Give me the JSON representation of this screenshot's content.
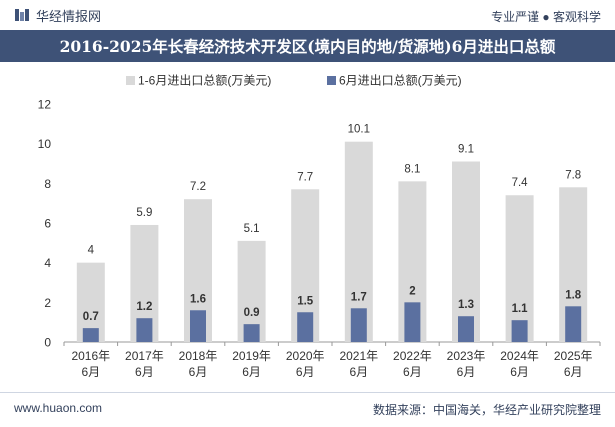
{
  "header": {
    "logo_text": "华经情报网",
    "tagline": "专业严谨 ● 客观科学"
  },
  "footer": {
    "website": "www.huaon.com",
    "source": "数据来源：中国海关，华经产业研究院整理"
  },
  "colors": {
    "series1": "#d9d9d9",
    "series2": "#5b70a0",
    "title_bg": "#3e5277",
    "accent": "#33415c"
  },
  "chart_data": {
    "type": "bar",
    "title": "2016-2025年长春经济技术开发区(境内目的地/货源地)6月进出口总额",
    "categories": [
      "2016年\n6月",
      "2017年\n6月",
      "2018年\n6月",
      "2019年\n6月",
      "2020年\n6月",
      "2021年\n6月",
      "2022年\n6月",
      "2023年\n6月",
      "2024年\n6月",
      "2025年\n6月"
    ],
    "series": [
      {
        "name": "1-6月进出口总额(万美元)",
        "values": [
          4,
          5.9,
          7.2,
          5.1,
          7.7,
          10.1,
          8.1,
          9.1,
          7.4,
          7.8
        ]
      },
      {
        "name": "6月进出口总额(万美元)",
        "values": [
          0.7,
          1.2,
          1.6,
          0.9,
          1.5,
          1.7,
          2,
          1.3,
          1.1,
          1.8
        ]
      }
    ],
    "ylim": [
      0,
      12
    ],
    "yticks": [
      0,
      2,
      4,
      6,
      8,
      10,
      12
    ],
    "legend_position": "top",
    "grid": false
  }
}
